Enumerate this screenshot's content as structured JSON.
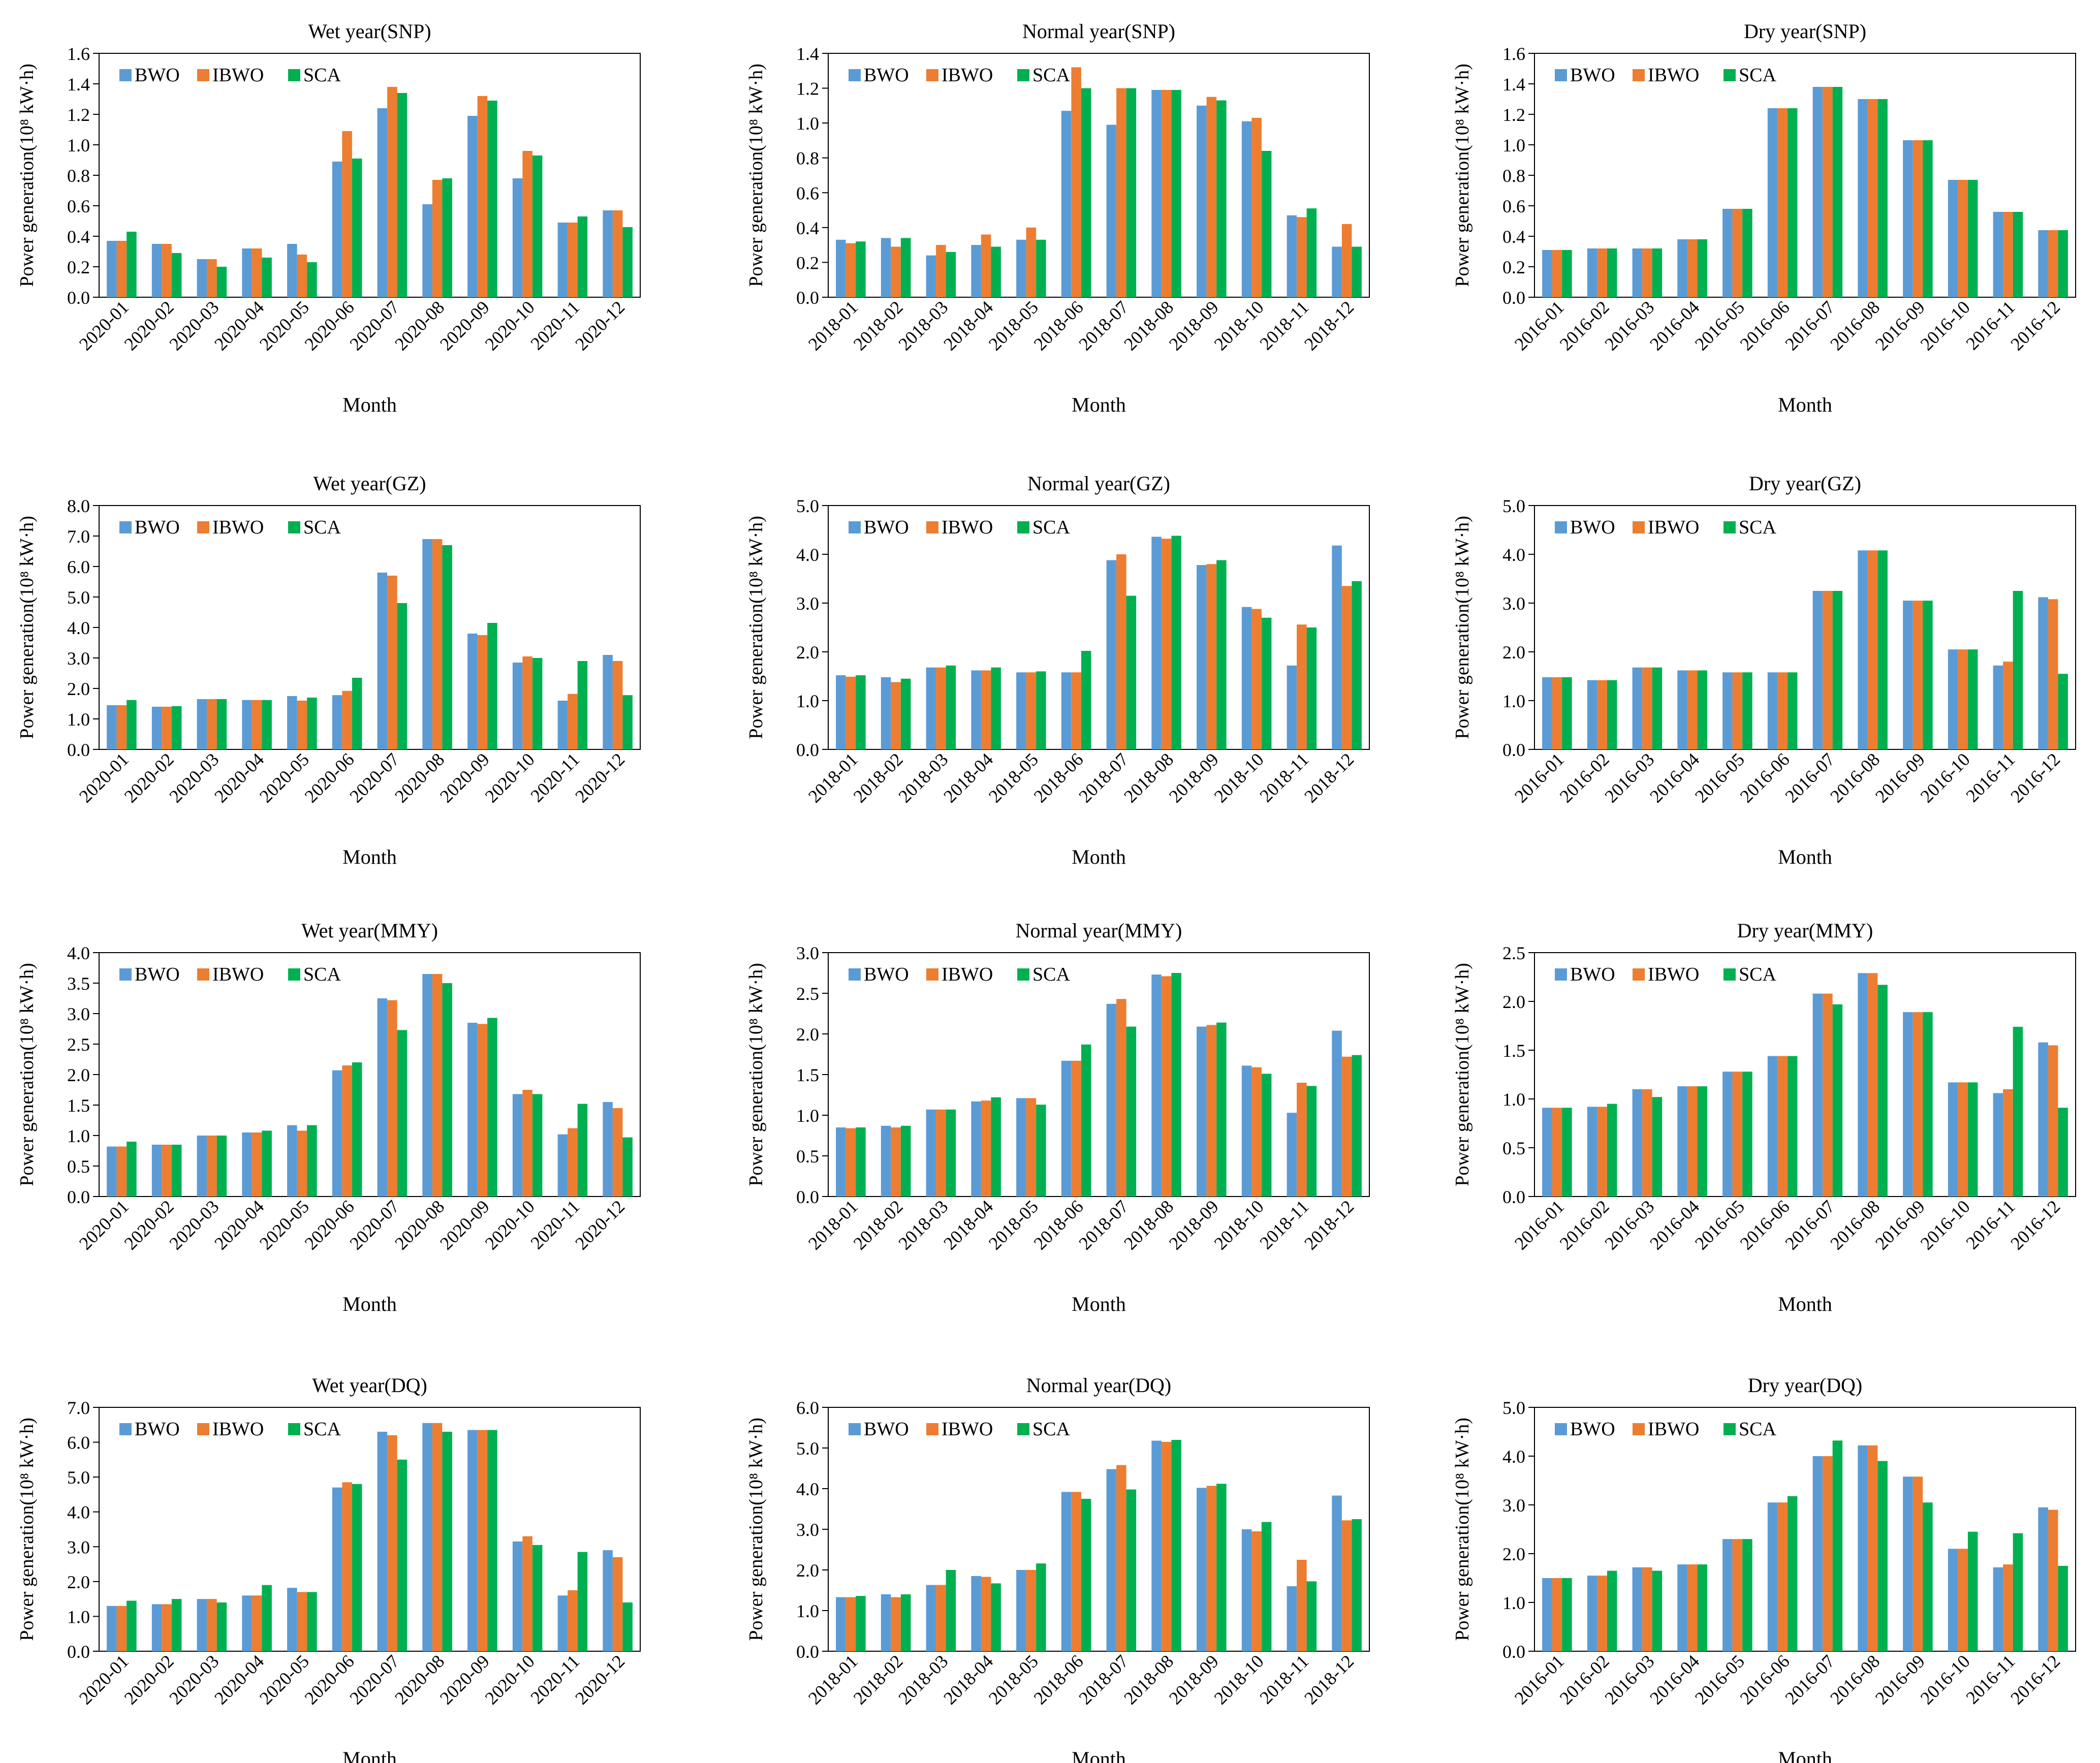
{
  "colors": {
    "BWO": "#5b9bd5",
    "IBWO": "#ed7d31",
    "SCA": "#00b050"
  },
  "legend": [
    "BWO",
    "IBWO",
    "SCA"
  ],
  "chart_data": [
    {
      "type": "bar",
      "title": "Wet year(SNP)",
      "xlabel": "Month",
      "ylabel": "Power generation(10⁸ kW·h)",
      "categories": [
        "2020-01",
        "2020-02",
        "2020-03",
        "2020-04",
        "2020-05",
        "2020-06",
        "2020-07",
        "2020-08",
        "2020-09",
        "2020-10",
        "2020-11",
        "2020-12"
      ],
      "ylim": [
        0,
        1.6
      ],
      "yticks": [
        "0.0",
        "0.2",
        "0.4",
        "0.6",
        "0.8",
        "1.0",
        "1.2",
        "1.4",
        "1.6"
      ],
      "series": [
        {
          "name": "BWO",
          "values": [
            0.37,
            0.35,
            0.25,
            0.32,
            0.35,
            0.89,
            1.24,
            0.61,
            1.19,
            0.78,
            0.49,
            0.57
          ]
        },
        {
          "name": "IBWO",
          "values": [
            0.37,
            0.35,
            0.25,
            0.32,
            0.28,
            1.09,
            1.38,
            0.77,
            1.32,
            0.96,
            0.49,
            0.57
          ]
        },
        {
          "name": "SCA",
          "values": [
            0.43,
            0.29,
            0.2,
            0.26,
            0.23,
            0.91,
            1.34,
            0.78,
            1.29,
            0.93,
            0.53,
            0.46
          ]
        }
      ]
    },
    {
      "type": "bar",
      "title": "Normal year(SNP)",
      "xlabel": "Month",
      "ylabel": "Power generation(10⁸ kW·h)",
      "categories": [
        "2018-01",
        "2018-02",
        "2018-03",
        "2018-04",
        "2018-05",
        "2018-06",
        "2018-07",
        "2018-08",
        "2018-09",
        "2018-10",
        "2018-11",
        "2018-12"
      ],
      "ylim": [
        0,
        1.4
      ],
      "yticks": [
        "0.0",
        "0.2",
        "0.4",
        "0.6",
        "0.8",
        "1.0",
        "1.2",
        "1.4"
      ],
      "series": [
        {
          "name": "BWO",
          "values": [
            0.33,
            0.34,
            0.24,
            0.3,
            0.33,
            1.07,
            0.99,
            1.19,
            1.1,
            1.01,
            0.47,
            0.29
          ]
        },
        {
          "name": "IBWO",
          "values": [
            0.31,
            0.29,
            0.3,
            0.36,
            0.4,
            1.32,
            1.2,
            1.19,
            1.15,
            1.03,
            0.46,
            0.42
          ]
        },
        {
          "name": "SCA",
          "values": [
            0.32,
            0.34,
            0.26,
            0.29,
            0.33,
            1.2,
            1.2,
            1.19,
            1.13,
            0.84,
            0.51,
            0.29
          ]
        }
      ]
    },
    {
      "type": "bar",
      "title": "Dry year(SNP)",
      "xlabel": "Month",
      "ylabel": "Power generation(10⁸ kW·h)",
      "categories": [
        "2016-01",
        "2016-02",
        "2016-03",
        "2016-04",
        "2016-05",
        "2016-06",
        "2016-07",
        "2016-08",
        "2016-09",
        "2016-10",
        "2016-11",
        "2016-12"
      ],
      "ylim": [
        0,
        1.6
      ],
      "yticks": [
        "0.0",
        "0.2",
        "0.4",
        "0.6",
        "0.8",
        "1.0",
        "1.2",
        "1.4",
        "1.6"
      ],
      "series": [
        {
          "name": "BWO",
          "values": [
            0.31,
            0.32,
            0.32,
            0.38,
            0.58,
            1.24,
            1.38,
            1.3,
            1.03,
            0.77,
            0.56,
            0.44
          ]
        },
        {
          "name": "IBWO",
          "values": [
            0.31,
            0.32,
            0.32,
            0.38,
            0.58,
            1.24,
            1.38,
            1.3,
            1.03,
            0.77,
            0.56,
            0.44
          ]
        },
        {
          "name": "SCA",
          "values": [
            0.31,
            0.32,
            0.32,
            0.38,
            0.58,
            1.24,
            1.38,
            1.3,
            1.03,
            0.77,
            0.56,
            0.44
          ]
        }
      ]
    },
    {
      "type": "bar",
      "title": "Wet year(GZ)",
      "xlabel": "Month",
      "ylabel": "Power generation(10⁸ kW·h)",
      "categories": [
        "2020-01",
        "2020-02",
        "2020-03",
        "2020-04",
        "2020-05",
        "2020-06",
        "2020-07",
        "2020-08",
        "2020-09",
        "2020-10",
        "2020-11",
        "2020-12"
      ],
      "ylim": [
        0,
        8
      ],
      "yticks": [
        "0.0",
        "1.0",
        "2.0",
        "3.0",
        "4.0",
        "5.0",
        "6.0",
        "7.0",
        "8.0"
      ],
      "series": [
        {
          "name": "BWO",
          "values": [
            1.45,
            1.4,
            1.65,
            1.62,
            1.75,
            1.78,
            5.8,
            6.9,
            3.8,
            2.85,
            1.6,
            3.1
          ]
        },
        {
          "name": "IBWO",
          "values": [
            1.45,
            1.4,
            1.65,
            1.62,
            1.6,
            1.92,
            5.7,
            6.9,
            3.75,
            3.05,
            1.82,
            2.9
          ]
        },
        {
          "name": "SCA",
          "values": [
            1.62,
            1.42,
            1.65,
            1.62,
            1.7,
            2.35,
            4.8,
            6.7,
            4.15,
            3.0,
            2.9,
            1.78
          ]
        }
      ]
    },
    {
      "type": "bar",
      "title": "Normal year(GZ)",
      "xlabel": "Month",
      "ylabel": "Power generation(10⁸ kW·h)",
      "categories": [
        "2018-01",
        "2018-02",
        "2018-03",
        "2018-04",
        "2018-05",
        "2018-06",
        "2018-07",
        "2018-08",
        "2018-09",
        "2018-10",
        "2018-11",
        "2018-12"
      ],
      "ylim": [
        0,
        5
      ],
      "yticks": [
        "0.0",
        "1.0",
        "2.0",
        "3.0",
        "4.0",
        "5.0"
      ],
      "series": [
        {
          "name": "BWO",
          "values": [
            1.52,
            1.48,
            1.68,
            1.62,
            1.58,
            1.58,
            3.88,
            4.36,
            3.78,
            2.92,
            1.72,
            4.18
          ]
        },
        {
          "name": "IBWO",
          "values": [
            1.49,
            1.38,
            1.68,
            1.62,
            1.58,
            1.58,
            4.0,
            4.32,
            3.8,
            2.88,
            2.56,
            3.35
          ]
        },
        {
          "name": "SCA",
          "values": [
            1.52,
            1.45,
            1.72,
            1.68,
            1.6,
            2.02,
            3.15,
            4.38,
            3.88,
            2.7,
            2.5,
            3.45
          ]
        }
      ]
    },
    {
      "type": "bar",
      "title": "Dry year(GZ)",
      "xlabel": "Month",
      "ylabel": "Power generation(10⁸ kW·h)",
      "categories": [
        "2016-01",
        "2016-02",
        "2016-03",
        "2016-04",
        "2016-05",
        "2016-06",
        "2016-07",
        "2016-08",
        "2016-09",
        "2016-10",
        "2016-11",
        "2016-12"
      ],
      "ylim": [
        0,
        5
      ],
      "yticks": [
        "0.0",
        "1.0",
        "2.0",
        "3.0",
        "4.0",
        "5.0"
      ],
      "series": [
        {
          "name": "BWO",
          "values": [
            1.48,
            1.42,
            1.68,
            1.62,
            1.58,
            1.58,
            3.25,
            4.08,
            3.05,
            2.05,
            1.72,
            3.12
          ]
        },
        {
          "name": "IBWO",
          "values": [
            1.48,
            1.42,
            1.68,
            1.62,
            1.58,
            1.58,
            3.25,
            4.08,
            3.05,
            2.05,
            1.8,
            3.08
          ]
        },
        {
          "name": "SCA",
          "values": [
            1.48,
            1.42,
            1.68,
            1.62,
            1.58,
            1.58,
            3.25,
            4.08,
            3.05,
            2.05,
            3.25,
            1.55
          ]
        }
      ]
    },
    {
      "type": "bar",
      "title": "Wet year(MMY)",
      "xlabel": "Month",
      "ylabel": "Power generation(10⁸ kW·h)",
      "categories": [
        "2020-01",
        "2020-02",
        "2020-03",
        "2020-04",
        "2020-05",
        "2020-06",
        "2020-07",
        "2020-08",
        "2020-09",
        "2020-10",
        "2020-11",
        "2020-12"
      ],
      "ylim": [
        0,
        4
      ],
      "yticks": [
        "0.0",
        "0.5",
        "1.0",
        "1.5",
        "2.0",
        "2.5",
        "3.0",
        "3.5",
        "4.0"
      ],
      "series": [
        {
          "name": "BWO",
          "values": [
            0.82,
            0.85,
            1.0,
            1.05,
            1.17,
            2.07,
            3.25,
            3.65,
            2.85,
            1.68,
            1.02,
            1.55
          ]
        },
        {
          "name": "IBWO",
          "values": [
            0.82,
            0.85,
            1.0,
            1.05,
            1.08,
            2.15,
            3.22,
            3.65,
            2.83,
            1.75,
            1.12,
            1.45
          ]
        },
        {
          "name": "SCA",
          "values": [
            0.9,
            0.85,
            1.0,
            1.08,
            1.17,
            2.2,
            2.73,
            3.5,
            2.93,
            1.68,
            1.52,
            0.97
          ]
        }
      ]
    },
    {
      "type": "bar",
      "title": "Normal year(MMY)",
      "xlabel": "Month",
      "ylabel": "Power generation(10⁸ kW·h)",
      "categories": [
        "2018-01",
        "2018-02",
        "2018-03",
        "2018-04",
        "2018-05",
        "2018-06",
        "2018-07",
        "2018-08",
        "2018-09",
        "2018-10",
        "2018-11",
        "2018-12"
      ],
      "ylim": [
        0,
        3
      ],
      "yticks": [
        "0.0",
        "0.5",
        "1.0",
        "1.5",
        "2.0",
        "2.5",
        "3.0"
      ],
      "series": [
        {
          "name": "BWO",
          "values": [
            0.85,
            0.87,
            1.07,
            1.17,
            1.21,
            1.67,
            2.37,
            2.73,
            2.09,
            1.61,
            1.03,
            2.04
          ]
        },
        {
          "name": "IBWO",
          "values": [
            0.84,
            0.85,
            1.07,
            1.18,
            1.21,
            1.67,
            2.43,
            2.71,
            2.11,
            1.59,
            1.4,
            1.72
          ]
        },
        {
          "name": "SCA",
          "values": [
            0.85,
            0.87,
            1.07,
            1.22,
            1.13,
            1.87,
            2.09,
            2.75,
            2.14,
            1.51,
            1.36,
            1.74
          ]
        }
      ]
    },
    {
      "type": "bar",
      "title": "Dry year(MMY)",
      "xlabel": "Month",
      "ylabel": "Power generation(10⁸ kW·h)",
      "categories": [
        "2016-01",
        "2016-02",
        "2016-03",
        "2016-04",
        "2016-05",
        "2016-06",
        "2016-07",
        "2016-08",
        "2016-09",
        "2016-10",
        "2016-11",
        "2016-12"
      ],
      "ylim": [
        0,
        2.5
      ],
      "yticks": [
        "0.0",
        "0.5",
        "1.0",
        "1.5",
        "2.0",
        "2.5"
      ],
      "series": [
        {
          "name": "BWO",
          "values": [
            0.91,
            0.92,
            1.1,
            1.13,
            1.28,
            1.44,
            2.08,
            2.29,
            1.89,
            1.17,
            1.06,
            1.58
          ]
        },
        {
          "name": "IBWO",
          "values": [
            0.91,
            0.92,
            1.1,
            1.13,
            1.28,
            1.44,
            2.08,
            2.29,
            1.89,
            1.17,
            1.1,
            1.55
          ]
        },
        {
          "name": "SCA",
          "values": [
            0.91,
            0.95,
            1.02,
            1.13,
            1.28,
            1.44,
            1.97,
            2.17,
            1.89,
            1.17,
            1.74,
            0.91
          ]
        }
      ]
    },
    {
      "type": "bar",
      "title": "Wet year(DQ)",
      "xlabel": "Month",
      "ylabel": "Power generation(10⁸ kW·h)",
      "categories": [
        "2020-01",
        "2020-02",
        "2020-03",
        "2020-04",
        "2020-05",
        "2020-06",
        "2020-07",
        "2020-08",
        "2020-09",
        "2020-10",
        "2020-11",
        "2020-12"
      ],
      "ylim": [
        0,
        7
      ],
      "yticks": [
        "0.0",
        "1.0",
        "2.0",
        "3.0",
        "4.0",
        "5.0",
        "6.0",
        "7.0"
      ],
      "series": [
        {
          "name": "BWO",
          "values": [
            1.3,
            1.35,
            1.5,
            1.6,
            1.82,
            4.7,
            6.3,
            6.55,
            6.35,
            3.15,
            1.6,
            2.9
          ]
        },
        {
          "name": "IBWO",
          "values": [
            1.3,
            1.35,
            1.5,
            1.6,
            1.7,
            4.85,
            6.2,
            6.55,
            6.35,
            3.3,
            1.75,
            2.7
          ]
        },
        {
          "name": "SCA",
          "values": [
            1.45,
            1.5,
            1.4,
            1.9,
            1.7,
            4.8,
            5.5,
            6.3,
            6.35,
            3.05,
            2.85,
            1.4
          ]
        }
      ]
    },
    {
      "type": "bar",
      "title": "Normal year(DQ)",
      "xlabel": "Month",
      "ylabel": "Power generation(10⁸ kW·h)",
      "categories": [
        "2018-01",
        "2018-02",
        "2018-03",
        "2018-04",
        "2018-05",
        "2018-06",
        "2018-07",
        "2018-08",
        "2018-09",
        "2018-10",
        "2018-11",
        "2018-12"
      ],
      "ylim": [
        0,
        6
      ],
      "yticks": [
        "0.0",
        "1.0",
        "2.0",
        "3.0",
        "4.0",
        "5.0",
        "6.0"
      ],
      "series": [
        {
          "name": "BWO",
          "values": [
            1.33,
            1.4,
            1.63,
            1.85,
            2.0,
            3.92,
            4.48,
            5.18,
            4.02,
            3.0,
            1.6,
            3.83
          ]
        },
        {
          "name": "IBWO",
          "values": [
            1.33,
            1.33,
            1.63,
            1.83,
            2.0,
            3.92,
            4.58,
            5.15,
            4.07,
            2.95,
            2.25,
            3.22
          ]
        },
        {
          "name": "SCA",
          "values": [
            1.36,
            1.4,
            2.0,
            1.67,
            2.16,
            3.75,
            3.98,
            5.2,
            4.12,
            3.18,
            1.72,
            3.25
          ]
        }
      ]
    },
    {
      "type": "bar",
      "title": "Dry year(DQ)",
      "xlabel": "Month",
      "ylabel": "Power generation(10⁸ kW·h)",
      "categories": [
        "2016-01",
        "2016-02",
        "2016-03",
        "2016-04",
        "2016-05",
        "2016-06",
        "2016-07",
        "2016-08",
        "2016-09",
        "2016-10",
        "2016-11",
        "2016-12"
      ],
      "ylim": [
        0,
        5
      ],
      "yticks": [
        "0.0",
        "1.0",
        "2.0",
        "3.0",
        "4.0",
        "5.0"
      ],
      "series": [
        {
          "name": "BWO",
          "values": [
            1.5,
            1.55,
            1.72,
            1.78,
            2.3,
            3.05,
            4.0,
            4.22,
            3.58,
            2.1,
            1.72,
            2.95
          ]
        },
        {
          "name": "IBWO",
          "values": [
            1.5,
            1.55,
            1.72,
            1.78,
            2.3,
            3.05,
            4.0,
            4.22,
            3.58,
            2.1,
            1.78,
            2.9
          ]
        },
        {
          "name": "SCA",
          "values": [
            1.5,
            1.65,
            1.65,
            1.78,
            2.3,
            3.18,
            4.32,
            3.9,
            3.05,
            2.45,
            2.42,
            1.75
          ]
        }
      ]
    }
  ]
}
